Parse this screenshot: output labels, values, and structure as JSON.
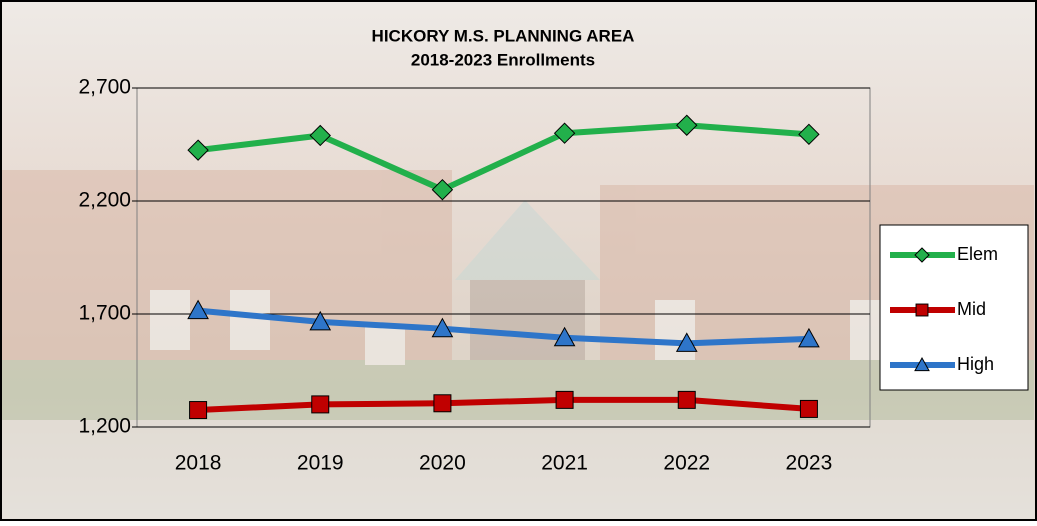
{
  "chart_data": {
    "type": "line",
    "title": "HICKORY M.S. PLANNING AREA",
    "subtitle": "2018-2023 Enrollments",
    "categories": [
      "2018",
      "2019",
      "2020",
      "2021",
      "2022",
      "2023"
    ],
    "series": [
      {
        "name": "Elem",
        "color": "#22b04b",
        "marker": "diamond",
        "values": [
          2425,
          2490,
          2250,
          2500,
          2535,
          2495
        ]
      },
      {
        "name": "Mid",
        "color": "#c00000",
        "marker": "square",
        "values": [
          1275,
          1300,
          1305,
          1320,
          1320,
          1280
        ]
      },
      {
        "name": "High",
        "color": "#2e75c9",
        "marker": "triangle",
        "values": [
          1715,
          1665,
          1635,
          1595,
          1570,
          1590
        ]
      }
    ],
    "ylim": [
      1200,
      2700
    ],
    "yticks": [
      {
        "value": 1200,
        "label": "1,200"
      },
      {
        "value": 1700,
        "label": "1,700"
      },
      {
        "value": 2200,
        "label": "2,200"
      },
      {
        "value": 2700,
        "label": "2,700"
      }
    ],
    "grid": true,
    "legend": "right"
  }
}
